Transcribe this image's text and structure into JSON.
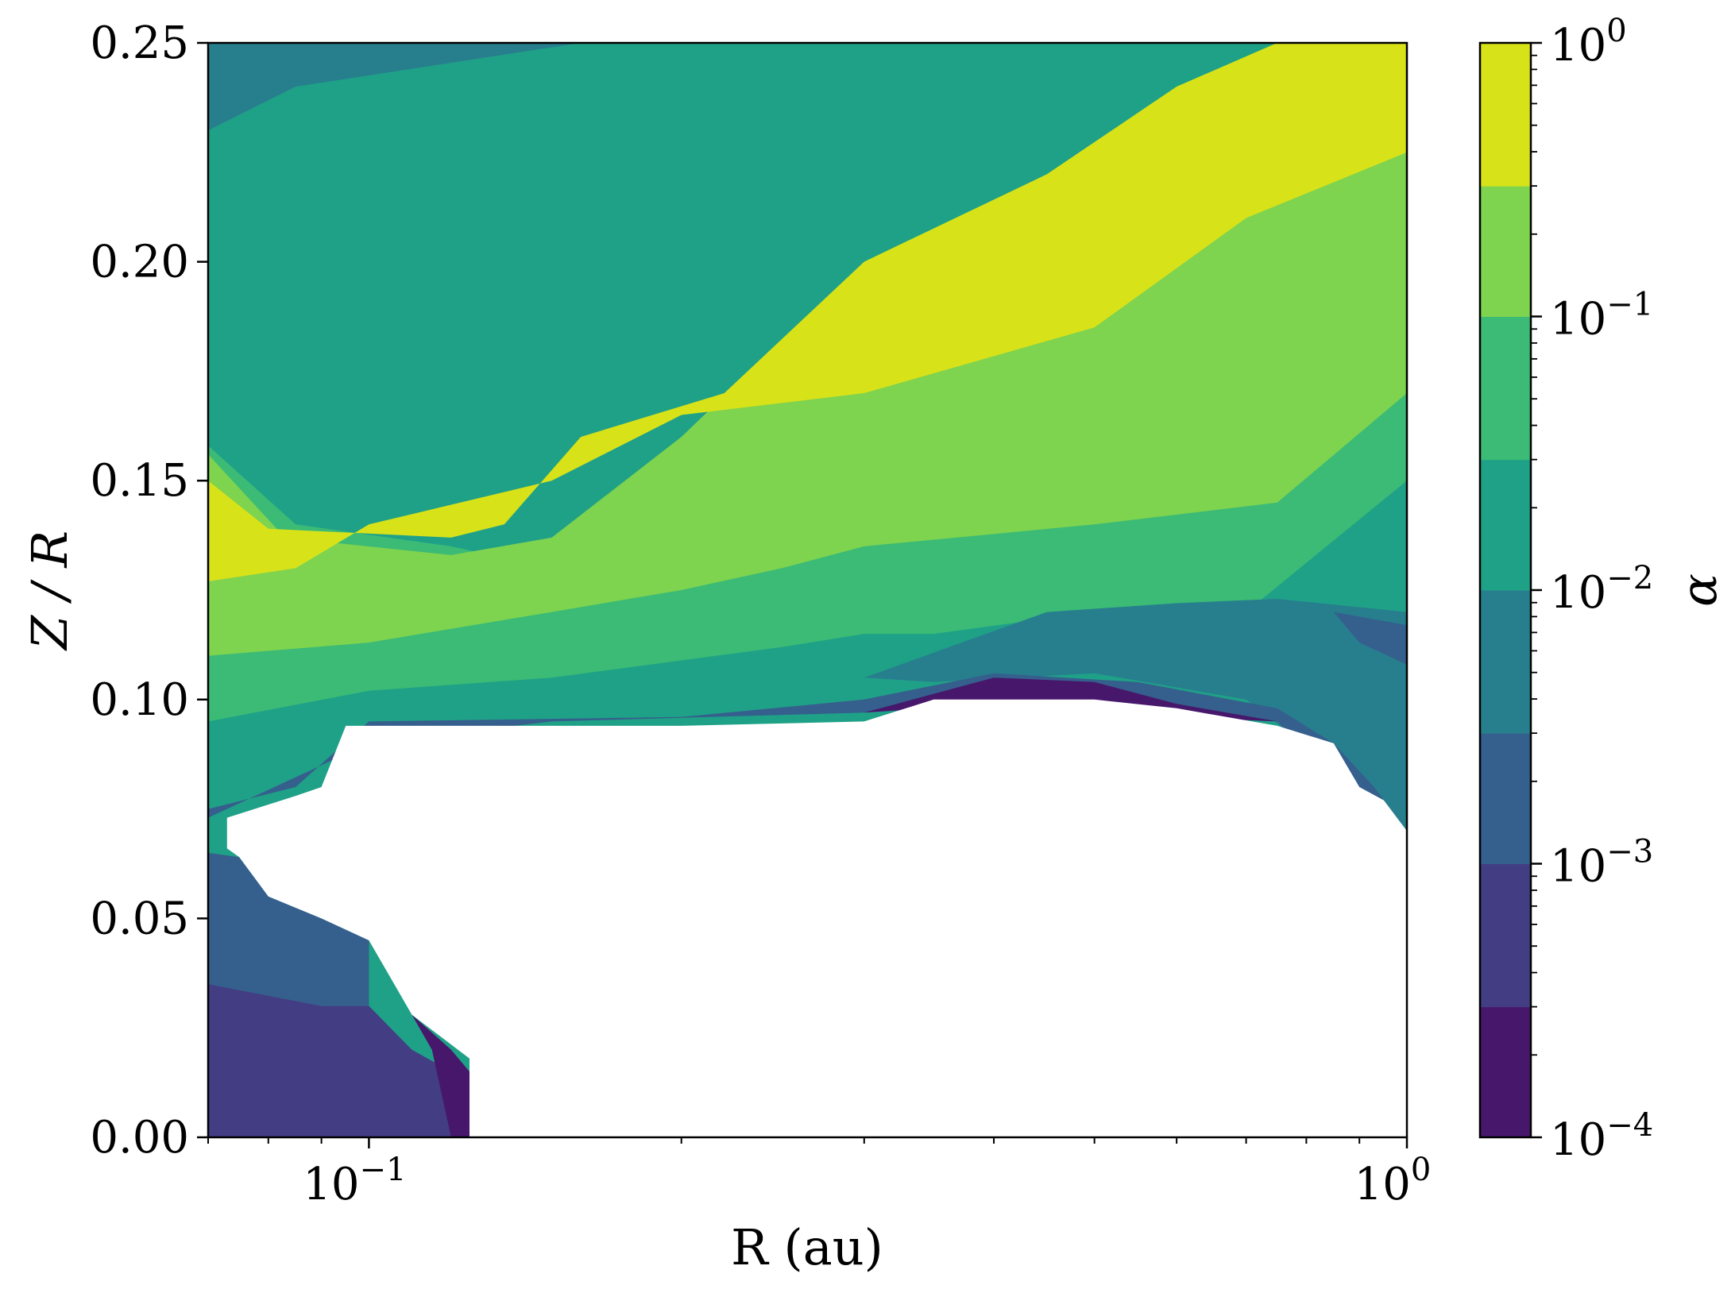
{
  "chart_data": {
    "type": "contourf",
    "x": {
      "label": "R (au)",
      "scale": "log",
      "lim": [
        0.07,
        1.0
      ],
      "major_ticks": [
        0.1,
        1.0
      ],
      "major_tick_labels": [
        {
          "base": "10",
          "exp": "−1"
        },
        {
          "base": "10",
          "exp": "0"
        }
      ],
      "minor_ticks": [
        0.07,
        0.08,
        0.09,
        0.2,
        0.3,
        0.4,
        0.5,
        0.6,
        0.7,
        0.8,
        0.9
      ]
    },
    "y": {
      "label": "Z / R",
      "scale": "linear",
      "lim": [
        0.0,
        0.25
      ],
      "ticks": [
        0.0,
        0.05,
        0.1,
        0.15,
        0.2,
        0.25
      ],
      "tick_labels": [
        "0.00",
        "0.05",
        "0.10",
        "0.15",
        "0.20",
        "0.25"
      ]
    },
    "colorbar": {
      "label": "α",
      "scale": "log",
      "lim": [
        0.0001,
        1.0
      ],
      "level_edges": [
        0.0001,
        0.0003,
        0.001,
        0.003,
        0.01,
        0.03,
        0.1,
        0.3,
        1.0
      ],
      "colors": [
        "#47176b",
        "#433d84",
        "#355f8d",
        "#277f8e",
        "#1fa187",
        "#3bbb75",
        "#7ed34f",
        "#d8e219"
      ],
      "major_ticks": [
        0.0001,
        0.001,
        0.01,
        0.1,
        1.0
      ],
      "major_tick_labels": [
        {
          "base": "10",
          "exp": "−4"
        },
        {
          "base": "10",
          "exp": "−3"
        },
        {
          "base": "10",
          "exp": "−2"
        },
        {
          "base": "10",
          "exp": "−1"
        },
        {
          "base": "10",
          "exp": "0"
        }
      ]
    },
    "grid": false,
    "regions": [
      {
        "level": 4,
        "fill": "#1fa187",
        "poly": [
          [
            0.07,
            0.25
          ],
          [
            1.0,
            0.25
          ],
          [
            1.0,
            0.0
          ],
          [
            0.07,
            0.0
          ]
        ]
      },
      {
        "level": 3,
        "fill": "#277f8e",
        "poly": [
          [
            0.07,
            0.25
          ],
          [
            0.16,
            0.25
          ],
          [
            0.085,
            0.24
          ],
          [
            0.07,
            0.23
          ]
        ]
      },
      {
        "level": 5,
        "fill": "#3bbb75",
        "poly": [
          [
            0.07,
            0.158
          ],
          [
            0.085,
            0.14
          ],
          [
            0.12,
            0.135
          ],
          [
            0.15,
            0.13
          ],
          [
            0.2,
            0.14
          ],
          [
            0.3,
            0.16
          ],
          [
            0.45,
            0.18
          ],
          [
            0.6,
            0.21
          ],
          [
            0.85,
            0.25
          ],
          [
            1.0,
            0.25
          ],
          [
            1.0,
            0.15
          ],
          [
            0.7,
            0.12
          ],
          [
            0.5,
            0.12
          ],
          [
            0.35,
            0.115
          ],
          [
            0.3,
            0.115
          ],
          [
            0.25,
            0.112
          ],
          [
            0.15,
            0.105
          ],
          [
            0.1,
            0.102
          ],
          [
            0.07,
            0.095
          ]
        ]
      },
      {
        "level": 6,
        "fill": "#7ed34f",
        "poly": [
          [
            0.07,
            0.156
          ],
          [
            0.083,
            0.137
          ],
          [
            0.12,
            0.133
          ],
          [
            0.15,
            0.137
          ],
          [
            0.2,
            0.16
          ],
          [
            0.3,
            0.2
          ],
          [
            0.45,
            0.22
          ],
          [
            0.6,
            0.24
          ],
          [
            0.75,
            0.25
          ],
          [
            1.0,
            0.25
          ],
          [
            1.0,
            0.17
          ],
          [
            0.75,
            0.145
          ],
          [
            0.5,
            0.14
          ],
          [
            0.3,
            0.135
          ],
          [
            0.25,
            0.13
          ],
          [
            0.2,
            0.125
          ],
          [
            0.15,
            0.12
          ],
          [
            0.1,
            0.113
          ],
          [
            0.07,
            0.11
          ]
        ]
      },
      {
        "level": 7,
        "fill": "#d8e219",
        "poly": [
          [
            0.07,
            0.15
          ],
          [
            0.08,
            0.139
          ],
          [
            0.12,
            0.137
          ],
          [
            0.135,
            0.14
          ],
          [
            0.16,
            0.16
          ],
          [
            0.22,
            0.17
          ],
          [
            0.3,
            0.2
          ],
          [
            0.45,
            0.22
          ],
          [
            0.6,
            0.24
          ],
          [
            0.75,
            0.25
          ],
          [
            1.0,
            0.25
          ],
          [
            1.0,
            0.225
          ],
          [
            0.7,
            0.21
          ],
          [
            0.5,
            0.185
          ],
          [
            0.3,
            0.17
          ],
          [
            0.2,
            0.165
          ],
          [
            0.15,
            0.15
          ],
          [
            0.1,
            0.14
          ],
          [
            0.085,
            0.13
          ],
          [
            0.07,
            0.127
          ]
        ]
      },
      {
        "level": 6,
        "fill": "#7ed34f",
        "poly": [
          [
            0.75,
            0.205
          ],
          [
            0.85,
            0.21
          ],
          [
            1.0,
            0.225
          ],
          [
            1.0,
            0.19
          ],
          [
            0.8,
            0.2
          ]
        ]
      },
      {
        "level": 3,
        "fill": "#277f8e",
        "poly": [
          [
            0.3,
            0.105
          ],
          [
            0.45,
            0.12
          ],
          [
            0.6,
            0.122
          ],
          [
            0.75,
            0.123
          ],
          [
            1.0,
            0.12
          ],
          [
            1.0,
            0.07
          ],
          [
            0.9,
            0.08
          ],
          [
            0.7,
            0.1
          ],
          [
            0.5,
            0.106
          ],
          [
            0.35,
            0.104
          ]
        ]
      },
      {
        "level": 2,
        "fill": "#355f8d",
        "poly": [
          [
            0.07,
            0.075
          ],
          [
            0.085,
            0.08
          ],
          [
            0.1,
            0.095
          ],
          [
            0.2,
            0.096
          ],
          [
            0.3,
            0.1
          ],
          [
            0.4,
            0.106
          ],
          [
            0.55,
            0.104
          ],
          [
            0.75,
            0.098
          ],
          [
            0.85,
            0.09
          ],
          [
            0.93,
            0.08
          ],
          [
            1.0,
            0.07
          ],
          [
            0.9,
            0.075
          ],
          [
            0.75,
            0.095
          ],
          [
            0.5,
            0.1
          ],
          [
            0.3,
            0.097
          ],
          [
            0.15,
            0.095
          ],
          [
            0.1,
            0.09
          ],
          [
            0.07,
            0.073
          ]
        ]
      },
      {
        "level": 2,
        "fill": "#355f8d",
        "poly": [
          [
            0.85,
            0.12
          ],
          [
            1.0,
            0.117
          ],
          [
            1.0,
            0.108
          ],
          [
            0.9,
            0.113
          ]
        ]
      },
      {
        "level": 2,
        "fill": "#355f8d",
        "poly": [
          [
            0.07,
            0.065
          ],
          [
            0.075,
            0.064
          ],
          [
            0.08,
            0.055
          ],
          [
            0.09,
            0.05
          ],
          [
            0.1,
            0.045
          ],
          [
            0.1,
            0.03
          ],
          [
            0.09,
            0.03
          ],
          [
            0.07,
            0.035
          ]
        ]
      },
      {
        "level": 1,
        "fill": "#433d84",
        "poly": [
          [
            0.07,
            0.035
          ],
          [
            0.09,
            0.03
          ],
          [
            0.1,
            0.03
          ],
          [
            0.11,
            0.02
          ],
          [
            0.12,
            0.015
          ],
          [
            0.12,
            0.0
          ],
          [
            0.07,
            0.0
          ]
        ]
      },
      {
        "level": 0,
        "fill": "#47176b",
        "poly": [
          [
            0.3,
            0.097
          ],
          [
            0.4,
            0.105
          ],
          [
            0.5,
            0.104
          ],
          [
            0.6,
            0.099
          ],
          [
            0.75,
            0.095
          ],
          [
            0.6,
            0.096
          ],
          [
            0.45,
            0.1
          ]
        ]
      },
      {
        "level": 0,
        "fill": "#47176b",
        "poly": [
          [
            0.11,
            0.028
          ],
          [
            0.12,
            0.02
          ],
          [
            0.125,
            0.015
          ],
          [
            0.125,
            0.0
          ],
          [
            0.12,
            0.0
          ],
          [
            0.115,
            0.02
          ]
        ]
      }
    ],
    "masked_region": {
      "fill": "#ffffff",
      "poly": [
        [
          0.073,
          0.073
        ],
        [
          0.085,
          0.078
        ],
        [
          0.09,
          0.08
        ],
        [
          0.095,
          0.094
        ],
        [
          0.15,
          0.094
        ],
        [
          0.2,
          0.094
        ],
        [
          0.3,
          0.095
        ],
        [
          0.35,
          0.1
        ],
        [
          0.5,
          0.1
        ],
        [
          0.6,
          0.098
        ],
        [
          0.75,
          0.094
        ],
        [
          0.85,
          0.09
        ],
        [
          0.9,
          0.08
        ],
        [
          0.95,
          0.077
        ],
        [
          1.0,
          0.07
        ],
        [
          1.0,
          0.0
        ],
        [
          0.125,
          0.0
        ],
        [
          0.125,
          0.018
        ],
        [
          0.11,
          0.028
        ],
        [
          0.1,
          0.045
        ],
        [
          0.09,
          0.05
        ],
        [
          0.08,
          0.055
        ],
        [
          0.075,
          0.064
        ],
        [
          0.073,
          0.066
        ]
      ]
    }
  }
}
